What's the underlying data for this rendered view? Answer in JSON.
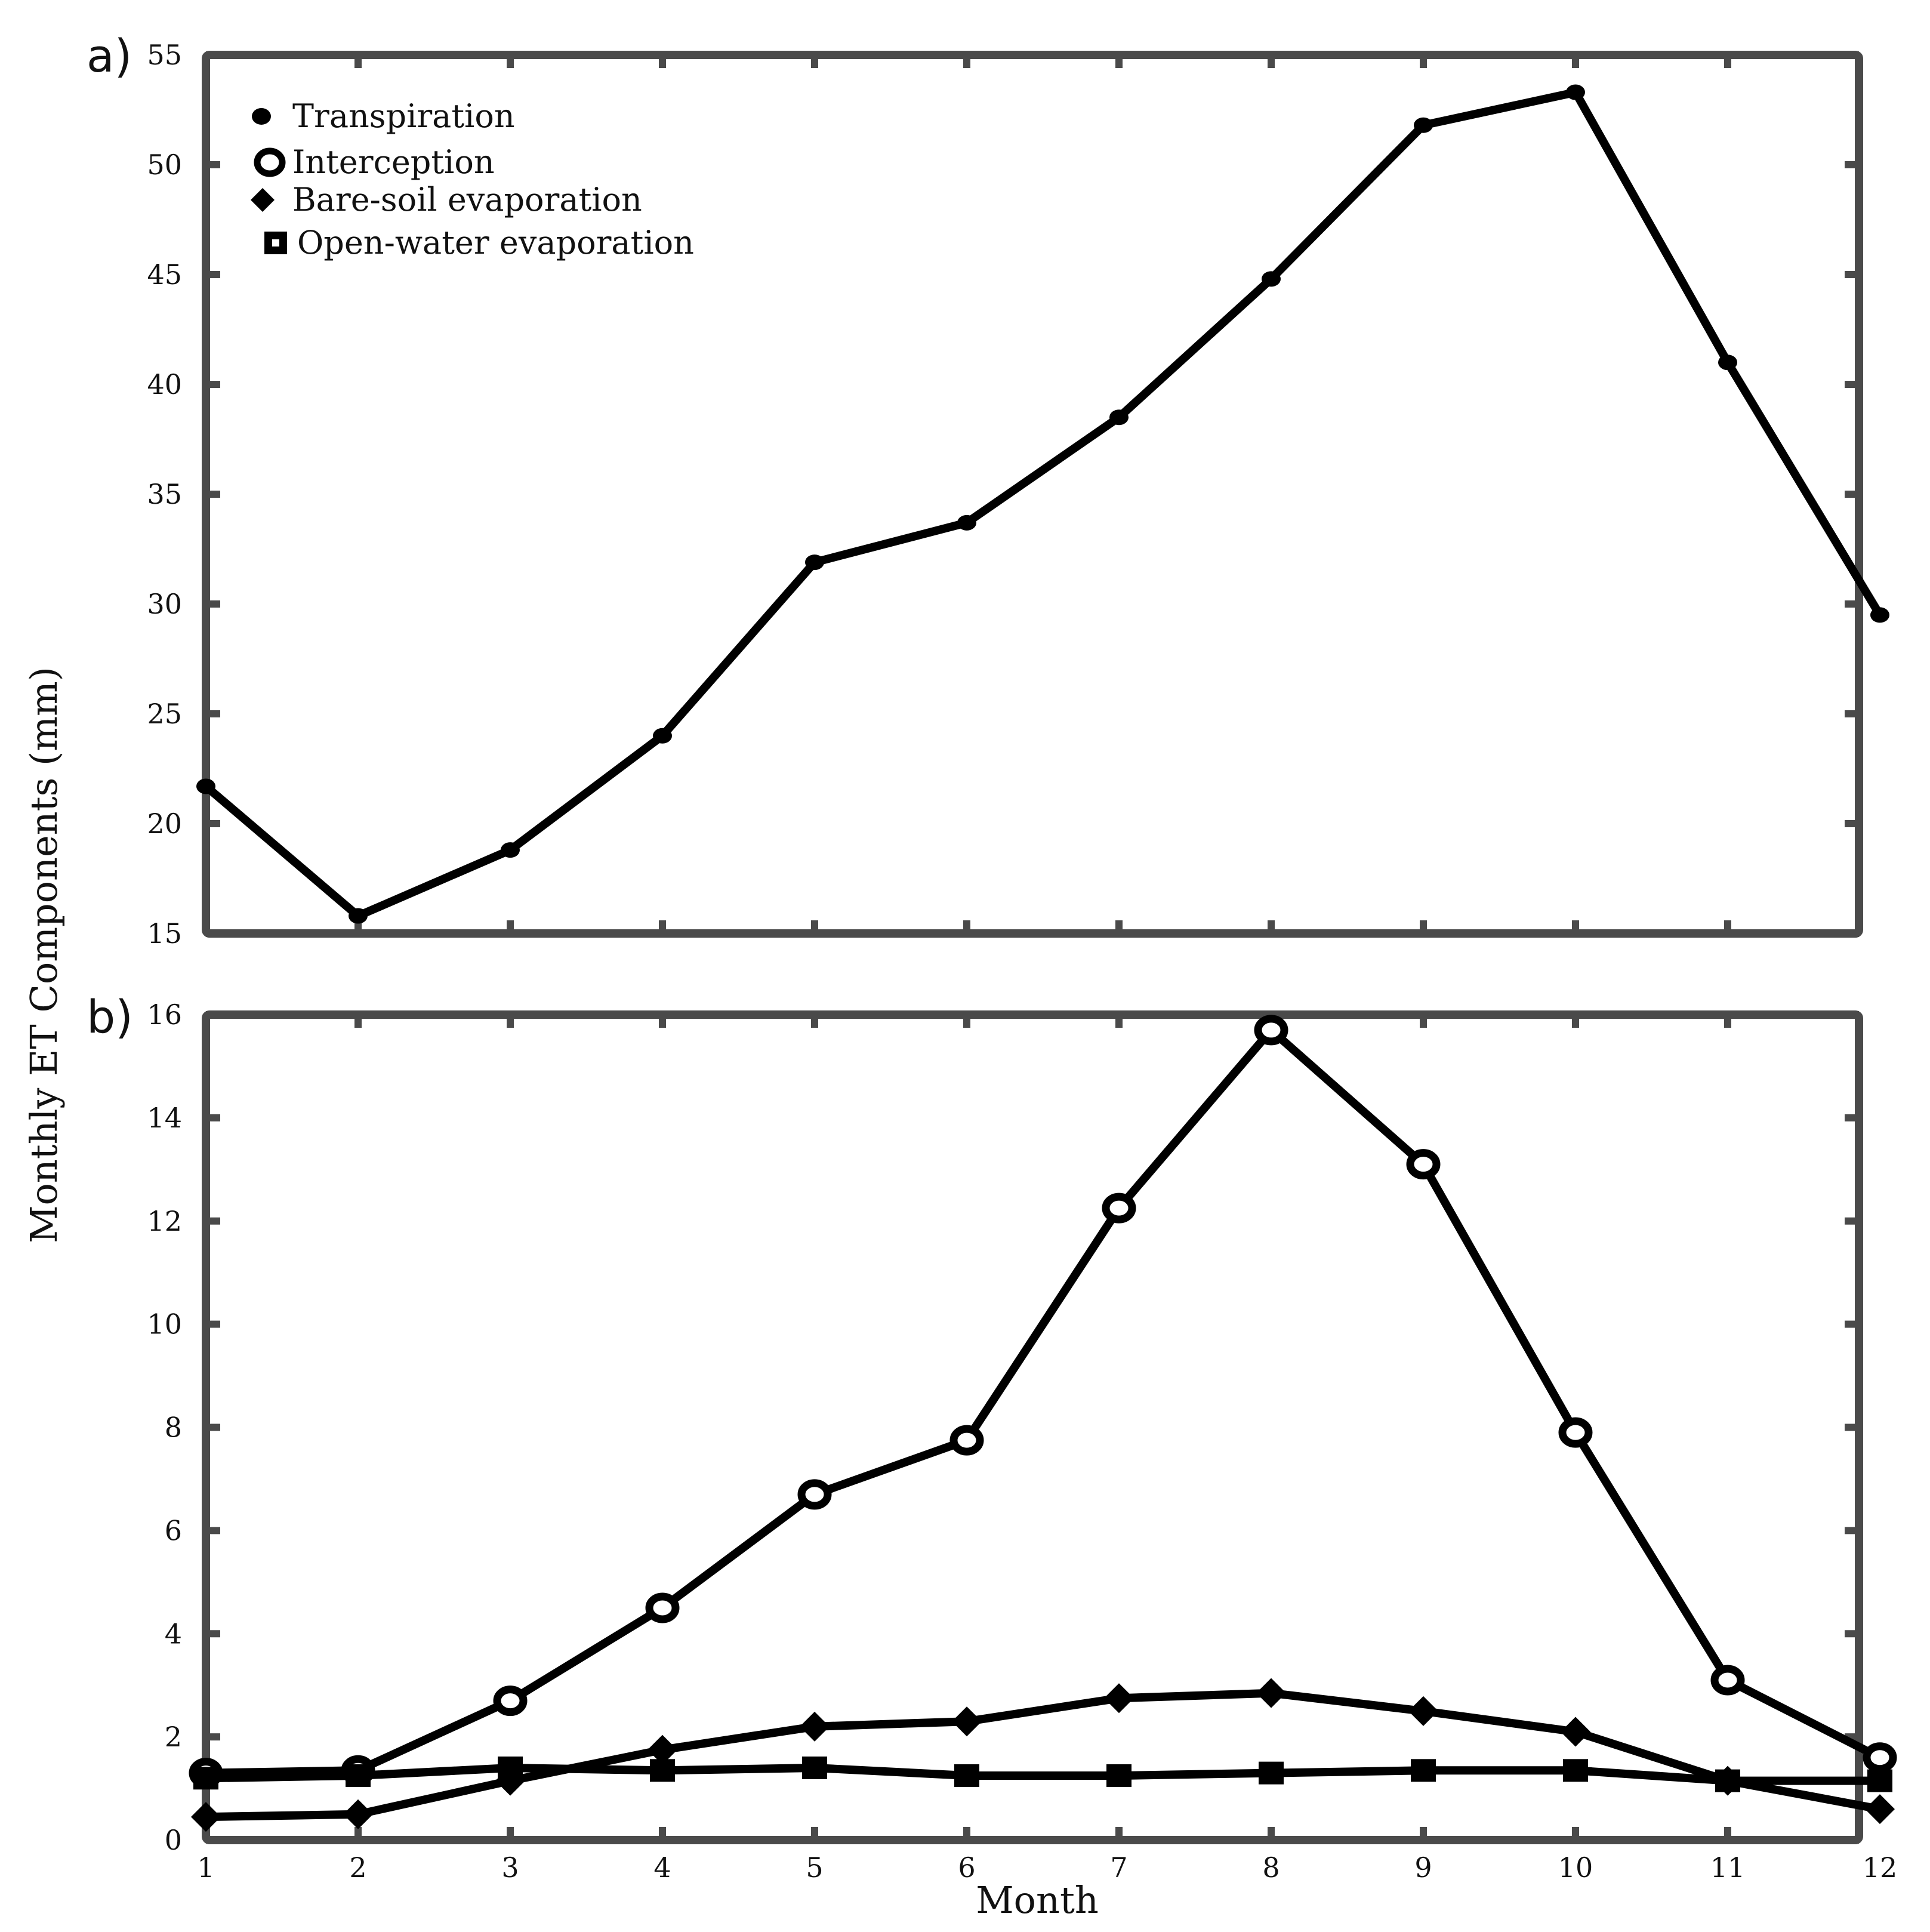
{
  "y_axis_title": "Monthly ET Components (mm)",
  "x_axis_title": "Month",
  "panels": {
    "a": {
      "label": "a)"
    },
    "b": {
      "label": "b)"
    }
  },
  "chart_data": [
    {
      "type": "line",
      "panel": "a)",
      "x": [
        1,
        2,
        3,
        4,
        5,
        6,
        7,
        8,
        9,
        10,
        11,
        12
      ],
      "xlim": [
        1,
        12
      ],
      "ylim": [
        15,
        55
      ],
      "yticks": [
        15,
        20,
        25,
        30,
        35,
        40,
        45,
        50,
        55
      ],
      "grid": false,
      "legend_position": "top-left",
      "legend": [
        "Transpiration",
        "Interception",
        "Bare-soil evaporation",
        "Open-water evaporation"
      ],
      "series": [
        {
          "name": "Transpiration",
          "marker": "dot",
          "values": [
            21.7,
            15.8,
            18.8,
            24.0,
            31.9,
            33.7,
            38.5,
            44.8,
            51.8,
            53.3,
            41.0,
            29.5
          ]
        }
      ]
    },
    {
      "type": "line",
      "panel": "b)",
      "x": [
        1,
        2,
        3,
        4,
        5,
        6,
        7,
        8,
        9,
        10,
        11,
        12
      ],
      "xticks": [
        1,
        2,
        3,
        4,
        5,
        6,
        7,
        8,
        9,
        10,
        11,
        12
      ],
      "xlim": [
        1,
        12
      ],
      "ylim": [
        0,
        16
      ],
      "yticks": [
        0,
        2,
        4,
        6,
        8,
        10,
        12,
        14,
        16
      ],
      "xlabel": "Month",
      "grid": false,
      "series": [
        {
          "name": "Interception",
          "marker": "ring",
          "values": [
            1.3,
            1.35,
            2.7,
            4.5,
            6.7,
            7.75,
            12.25,
            15.7,
            13.1,
            7.9,
            3.1,
            1.6
          ]
        },
        {
          "name": "Bare-soil evaporation",
          "marker": "diamond",
          "values": [
            0.45,
            0.5,
            1.15,
            1.75,
            2.2,
            2.3,
            2.75,
            2.85,
            2.5,
            2.1,
            1.15,
            0.6
          ]
        },
        {
          "name": "Open-water evaporation",
          "marker": "square",
          "values": [
            1.2,
            1.25,
            1.4,
            1.35,
            1.4,
            1.25,
            1.25,
            1.3,
            1.35,
            1.35,
            1.15,
            1.15
          ]
        }
      ]
    }
  ]
}
